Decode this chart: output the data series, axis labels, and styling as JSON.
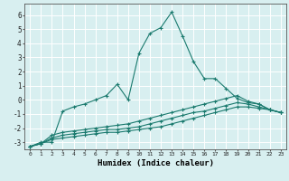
{
  "xlabel": "Humidex (Indice chaleur)",
  "x": [
    0,
    1,
    2,
    3,
    4,
    5,
    6,
    7,
    8,
    9,
    10,
    11,
    12,
    13,
    14,
    15,
    16,
    17,
    18,
    19,
    20,
    21,
    22,
    23
  ],
  "line1": [
    -3.3,
    -3.0,
    -3.0,
    -0.8,
    -0.5,
    -0.3,
    0.0,
    0.3,
    1.1,
    0.0,
    3.3,
    4.7,
    5.1,
    6.2,
    4.5,
    2.7,
    1.5,
    1.5,
    0.8,
    0.1,
    -0.2,
    -0.3,
    -0.7,
    -0.9
  ],
  "line2": [
    -3.3,
    -3.1,
    -2.5,
    -2.3,
    -2.2,
    -2.1,
    -2.0,
    -1.9,
    -1.8,
    -1.7,
    -1.5,
    -1.3,
    -1.1,
    -0.9,
    -0.7,
    -0.5,
    -0.3,
    -0.1,
    0.1,
    0.3,
    -0.1,
    -0.3,
    -0.7,
    -0.9
  ],
  "line3": [
    -3.3,
    -3.1,
    -2.7,
    -2.5,
    -2.4,
    -2.3,
    -2.2,
    -2.1,
    -2.1,
    -2.0,
    -1.9,
    -1.7,
    -1.5,
    -1.3,
    -1.1,
    -0.9,
    -0.8,
    -0.6,
    -0.4,
    -0.2,
    -0.3,
    -0.5,
    -0.7,
    -0.9
  ],
  "line4": [
    -3.3,
    -3.1,
    -2.8,
    -2.7,
    -2.6,
    -2.5,
    -2.4,
    -2.3,
    -2.3,
    -2.2,
    -2.1,
    -2.0,
    -1.9,
    -1.7,
    -1.5,
    -1.3,
    -1.1,
    -0.9,
    -0.7,
    -0.5,
    -0.5,
    -0.6,
    -0.7,
    -0.9
  ],
  "color": "#1a7a6e",
  "bg_color": "#d8eff0",
  "grid_color": "#ffffff",
  "ylim": [
    -3.5,
    6.8
  ],
  "xlim": [
    -0.5,
    23.5
  ],
  "yticks": [
    -3,
    -2,
    -1,
    0,
    1,
    2,
    3,
    4,
    5,
    6
  ],
  "xticks": [
    0,
    1,
    2,
    3,
    4,
    5,
    6,
    7,
    8,
    9,
    10,
    11,
    12,
    13,
    14,
    15,
    16,
    17,
    18,
    19,
    20,
    21,
    22,
    23
  ]
}
